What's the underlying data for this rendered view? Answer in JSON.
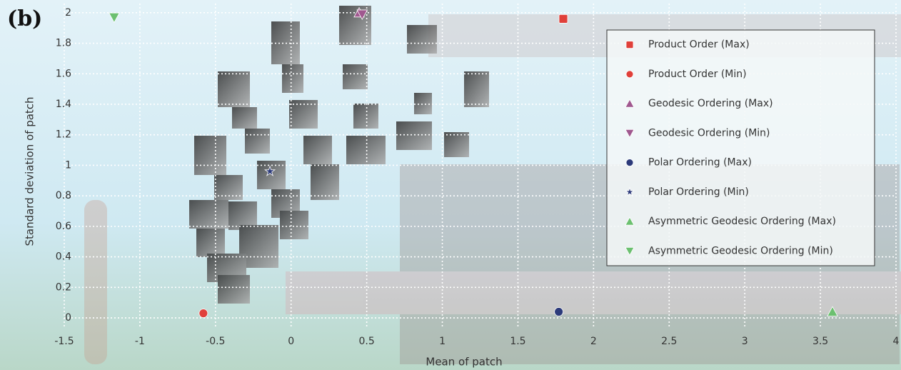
{
  "chart_data": {
    "type": "scatter",
    "title": "(b)",
    "x_label": "Mean of patch",
    "y_label": "Standard deviation of patch",
    "xlim": [
      -1.5,
      4
    ],
    "ylim": [
      -0.07,
      2.06
    ],
    "xticks": [
      -1.5,
      -1,
      -0.5,
      0,
      0.5,
      1,
      1.5,
      2,
      2.5,
      3,
      3.5,
      4
    ],
    "yticks": [
      0,
      0.2,
      0.4,
      0.6,
      0.8,
      1,
      1.2,
      1.4,
      1.6,
      1.8,
      2
    ],
    "grid": true,
    "legend": "upper right",
    "series": [
      {
        "name": "Product Order (Max)",
        "color": "#e0403a",
        "marker": "square",
        "x": [
          1.8
        ],
        "values": [
          1.96
        ]
      },
      {
        "name": "Product Order (Min)",
        "color": "#e0403a",
        "marker": "circle",
        "x": [
          -0.58
        ],
        "values": [
          0.03
        ]
      },
      {
        "name": "Geodesic Ordering (Max)",
        "color": "#a0588f",
        "marker": "triangle-up",
        "x": [
          0.45
        ],
        "values": [
          2.0
        ]
      },
      {
        "name": "Geodesic Ordering (Min)",
        "color": "#a0588f",
        "marker": "triangle-down",
        "x": [
          0.47
        ],
        "values": [
          1.99
        ]
      },
      {
        "name": "Polar Ordering (Max)",
        "color": "#2c3a7a",
        "marker": "circle",
        "x": [
          1.77
        ],
        "values": [
          0.04
        ]
      },
      {
        "name": "Polar Ordering (Min)",
        "color": "#2c3a7a",
        "marker": "star",
        "x": [
          -0.14
        ],
        "values": [
          0.96
        ]
      },
      {
        "name": "Asymmetric Geodesic Ordering (Max)",
        "color": "#6cc070",
        "marker": "triangle-up",
        "x": [
          3.58
        ],
        "values": [
          0.04
        ]
      },
      {
        "name": "Asymmetric Geodesic Ordering (Min)",
        "color": "#6cc070",
        "marker": "triangle-down",
        "x": [
          -1.17
        ],
        "values": [
          1.97
        ]
      }
    ]
  }
}
